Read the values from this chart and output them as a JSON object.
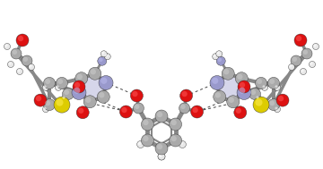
{
  "figsize": [
    3.6,
    1.89
  ],
  "dpi": 100,
  "background_color": "#ffffff",
  "atoms": {
    "C": "#aaaaaa",
    "C_light": "#cccccc",
    "C_dark": "#888888",
    "O": "#dd1111",
    "O_light": "#ff5555",
    "N": "#9999cc",
    "N_light": "#bbbbee",
    "S": "#ddcc00",
    "S_light": "#ffee55",
    "H": "#e8e8e8",
    "H_light": "#ffffff"
  },
  "bond_color": "#999999",
  "bond_lw": 3.0,
  "hbond_color": "#444444",
  "hbond_lw": 0.7
}
